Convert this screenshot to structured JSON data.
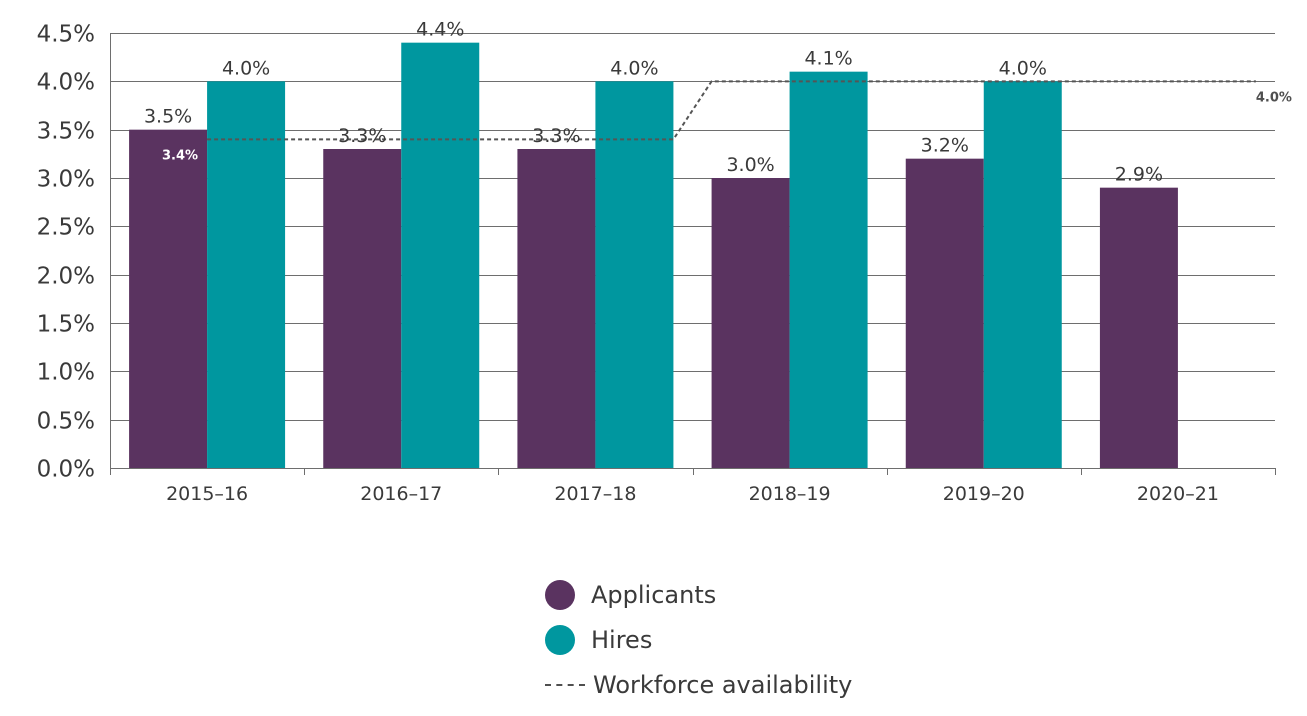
{
  "chart_data": {
    "type": "bar",
    "title": "",
    "xlabel": "",
    "ylabel": "",
    "ylim": [
      0,
      4.5
    ],
    "yticks": [
      "0.0%",
      "0.5%",
      "1.0%",
      "1.5%",
      "2.0%",
      "2.5%",
      "3.0%",
      "3.5%",
      "4.0%",
      "4.5%"
    ],
    "categories": [
      "2015–16",
      "2016–17",
      "2017–18",
      "2018–19",
      "2019–20",
      "2020–21"
    ],
    "series": [
      {
        "name": "Applicants",
        "color": "#5a3360",
        "values": [
          3.5,
          3.3,
          3.3,
          3.0,
          3.2,
          2.9
        ],
        "labels": [
          "3.5%",
          "3.3%",
          "3.3%",
          "3.0%",
          "3.2%",
          "2.9%"
        ]
      },
      {
        "name": "Hires",
        "color": "#00979f",
        "values": [
          4.0,
          4.4,
          4.0,
          4.1,
          4.0,
          null
        ],
        "labels": [
          "4.0%",
          "4.4%",
          "4.0%",
          "4.1%",
          "4.0%",
          ""
        ]
      }
    ],
    "workforce_availability": {
      "name": "Workforce availability",
      "color": "#555555",
      "values": [
        3.4,
        3.4,
        3.4,
        4.0,
        4.0,
        4.0
      ],
      "start_label": "3.4%",
      "end_label": "4.0%"
    },
    "legend": {
      "position": "bottom-center",
      "items": [
        "Applicants",
        "Hires",
        "Workforce availability"
      ]
    }
  }
}
